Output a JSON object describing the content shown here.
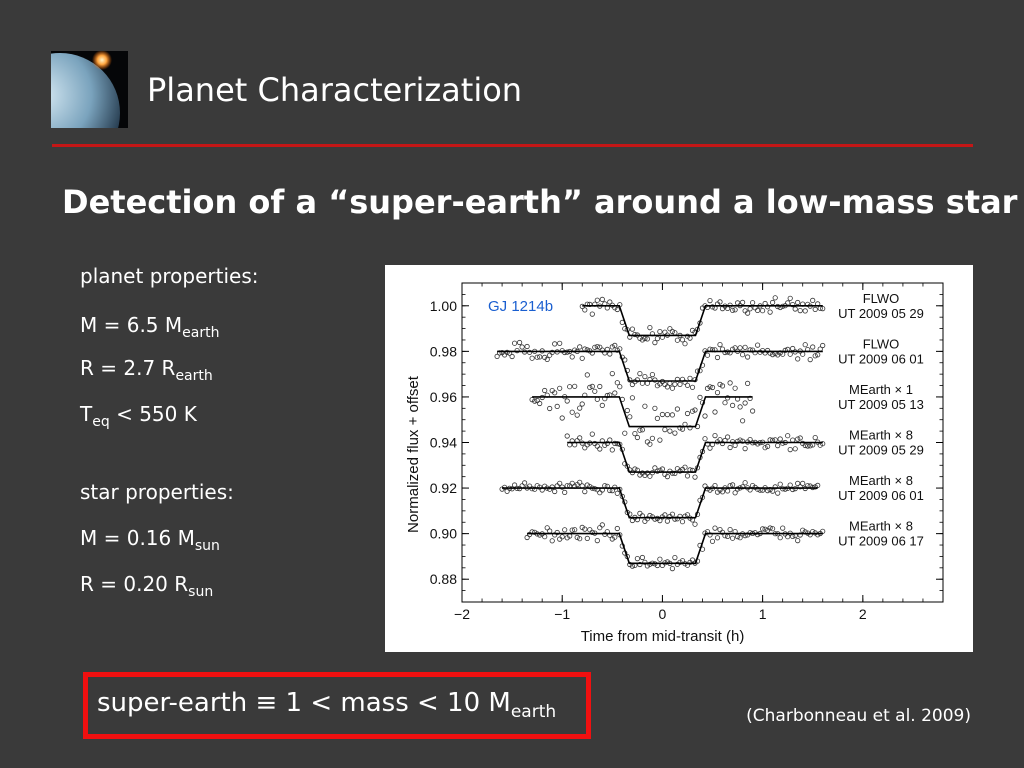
{
  "slide": {
    "title": "Planet Characterization",
    "subtitle": "Detection of a “super-earth” around a low-mass star",
    "citation": "(Charbonneau et al. 2009)"
  },
  "planet_properties": {
    "heading": "planet properties:",
    "mass": {
      "prefix": "M = 6.5 M",
      "sub": "earth"
    },
    "radius": {
      "prefix": "R = 2.7 R",
      "sub": "earth"
    },
    "temp": {
      "symbol": "T",
      "sub": "eq",
      "suffix": " < 550 K"
    }
  },
  "star_properties": {
    "heading": "star properties:",
    "mass": {
      "prefix": "M = 0.16 M",
      "sub": "sun"
    },
    "radius": {
      "prefix": "R = 0.20 R",
      "sub": "sun"
    }
  },
  "definition": {
    "prefix": "super-earth ≡ 1 < mass < 10 M",
    "sub": "earth"
  },
  "colors": {
    "background": "#3a3a3a",
    "title_rule": "#c41616",
    "box_border": "#f01010",
    "figure_label": "#1a5fd0"
  },
  "icons": {
    "logo": "exoplanet-image"
  },
  "chart_data": {
    "type": "scatter",
    "title": "GJ 1214b",
    "xlabel": "Time from mid-transit (h)",
    "ylabel": "Normalized flux + offset",
    "xlim": [
      -2,
      2.8
    ],
    "ylim": [
      0.87,
      1.01
    ],
    "x_ticks": [
      -2,
      -1,
      0,
      1,
      2
    ],
    "x_tick_labels": [
      "−2",
      "−1",
      "0",
      "1",
      "2"
    ],
    "y_ticks": [
      0.88,
      0.9,
      0.92,
      0.94,
      0.96,
      0.98,
      1.0
    ],
    "y_tick_labels": [
      "0.88",
      "0.90",
      "0.92",
      "0.94",
      "0.96",
      "0.98",
      "1.00"
    ],
    "transit_depth": 0.013,
    "transit_t1": -0.43,
    "transit_t2": -0.33,
    "transit_t3": 0.33,
    "transit_t4": 0.43,
    "series": [
      {
        "instrument": "FLWO",
        "date": "UT 2009 05 29",
        "baseline": 1.0,
        "x_start": -0.8,
        "x_end": 1.6,
        "scatter": 0.0018
      },
      {
        "instrument": "FLWO",
        "date": "UT 2009 06 01",
        "baseline": 0.98,
        "x_start": -1.65,
        "x_end": 1.6,
        "scatter": 0.0018
      },
      {
        "instrument": "MEarth × 1",
        "date": "UT 2009 05 13",
        "baseline": 0.96,
        "x_start": -1.3,
        "x_end": 0.9,
        "scatter": 0.0045
      },
      {
        "instrument": "MEarth × 8",
        "date": "UT 2009 05 29",
        "baseline": 0.94,
        "x_start": -0.95,
        "x_end": 1.6,
        "scatter": 0.0014
      },
      {
        "instrument": "MEarth × 8",
        "date": "UT 2009 06 01",
        "baseline": 0.92,
        "x_start": -1.6,
        "x_end": 1.55,
        "scatter": 0.0012
      },
      {
        "instrument": "MEarth × 8",
        "date": "UT 2009 06 17",
        "baseline": 0.9,
        "x_start": -1.35,
        "x_end": 1.6,
        "scatter": 0.0015
      }
    ]
  }
}
